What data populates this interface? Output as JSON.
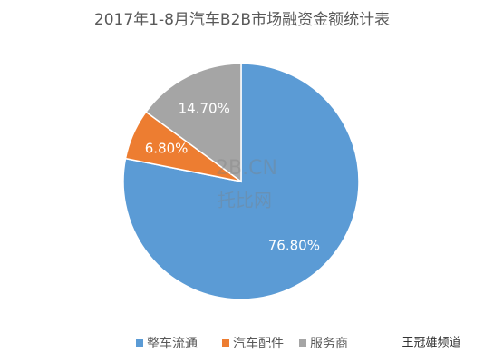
{
  "chart_data": {
    "type": "pie",
    "title": "2017年1-8月汽车B2B市场融资金额统计表",
    "categories": [
      "整车流通",
      "汽车配件",
      "服务商"
    ],
    "values": [
      76.8,
      6.8,
      14.7
    ],
    "value_labels": [
      "76.80%",
      "6.80%",
      "14.70%"
    ],
    "colors": [
      "#5b9bd5",
      "#ed7d31",
      "#a5a5a5"
    ],
    "legend": "bottom"
  },
  "watermark": {
    "site": "2B.CN",
    "name": "托比网",
    "channel": "王冠雄频道"
  }
}
